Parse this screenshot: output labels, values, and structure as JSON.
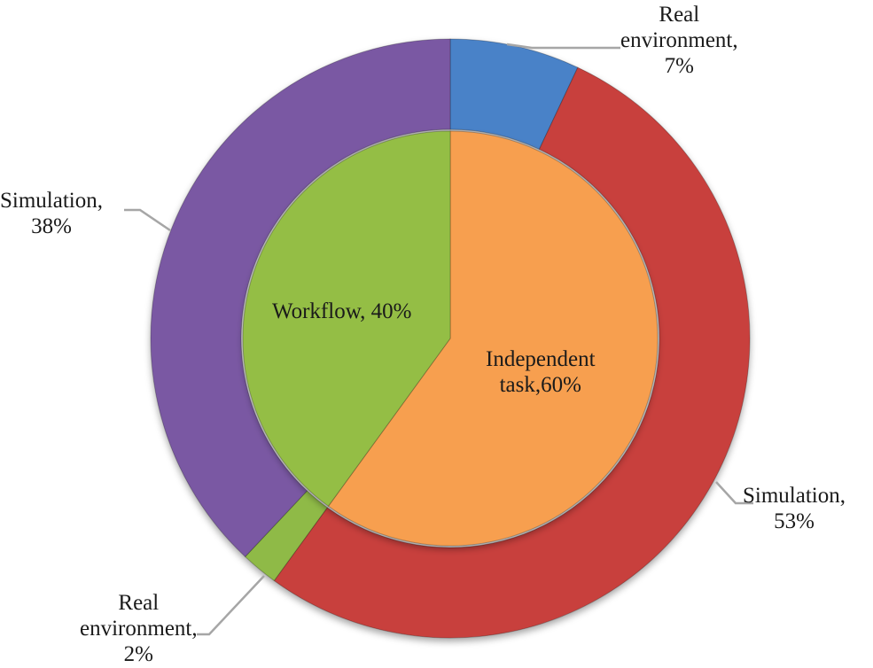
{
  "chart_data": {
    "type": "pie",
    "subtype": "nested-donut",
    "title": "",
    "inner_ring": {
      "categories": [
        "Independent task",
        "Workflow"
      ],
      "values": [
        60,
        40
      ],
      "colors": [
        "#f79f4f",
        "#94be45"
      ]
    },
    "outer_ring": {
      "categories": [
        "Real environment",
        "Simulation",
        "Real environment",
        "Simulation"
      ],
      "parent": [
        "Independent task",
        "Independent task",
        "Workflow",
        "Workflow"
      ],
      "values": [
        7,
        53,
        2,
        38
      ],
      "colors": [
        "#4a82c8",
        "#c8413d",
        "#8fba47",
        "#7a59a3"
      ]
    },
    "labels": [
      {
        "id": "outer_real_7",
        "line1": "Real",
        "line2": "environment,",
        "line3": "7%"
      },
      {
        "id": "outer_sim_53",
        "line1": "Simulation,",
        "line2": "53%"
      },
      {
        "id": "outer_real_2",
        "line1": "Real",
        "line2": "environment,",
        "line3": "2%"
      },
      {
        "id": "outer_sim_38",
        "line1": "Simulation,",
        "line2": "38%"
      },
      {
        "id": "inner_workflow",
        "line1": "Workflow, 40%"
      },
      {
        "id": "inner_independent",
        "line1": "Independent",
        "line2": "task,60%"
      }
    ],
    "legend": null
  }
}
